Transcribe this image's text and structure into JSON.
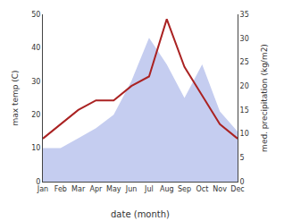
{
  "chart_data": {
    "type": "line",
    "categories": [
      "Jan",
      "Feb",
      "Mar",
      "Apr",
      "May",
      "Jun",
      "Jul",
      "Aug",
      "Sep",
      "Oct",
      "Nov",
      "Dec"
    ],
    "series": [
      {
        "type": "area",
        "color": "#c5cdf0",
        "values": [
          10,
          10,
          13,
          16,
          20,
          30,
          43,
          35,
          25,
          35,
          21,
          15
        ]
      },
      {
        "type": "line",
        "color": "#aa2222",
        "axis": "y2",
        "values": [
          9,
          12,
          15,
          17,
          17,
          20,
          22,
          34,
          24,
          18,
          12,
          9
        ]
      }
    ],
    "xlabel": "date (month)",
    "ylabel": "max temp (C)",
    "y2label": "med. precipitation (kg/m2)",
    "ylim": [
      0,
      50
    ],
    "yticks": [
      0,
      10,
      20,
      30,
      40,
      50
    ],
    "y2lim": [
      0,
      35
    ],
    "y2ticks": [
      0,
      5,
      10,
      15,
      20,
      25,
      30,
      35
    ],
    "grid": false
  }
}
